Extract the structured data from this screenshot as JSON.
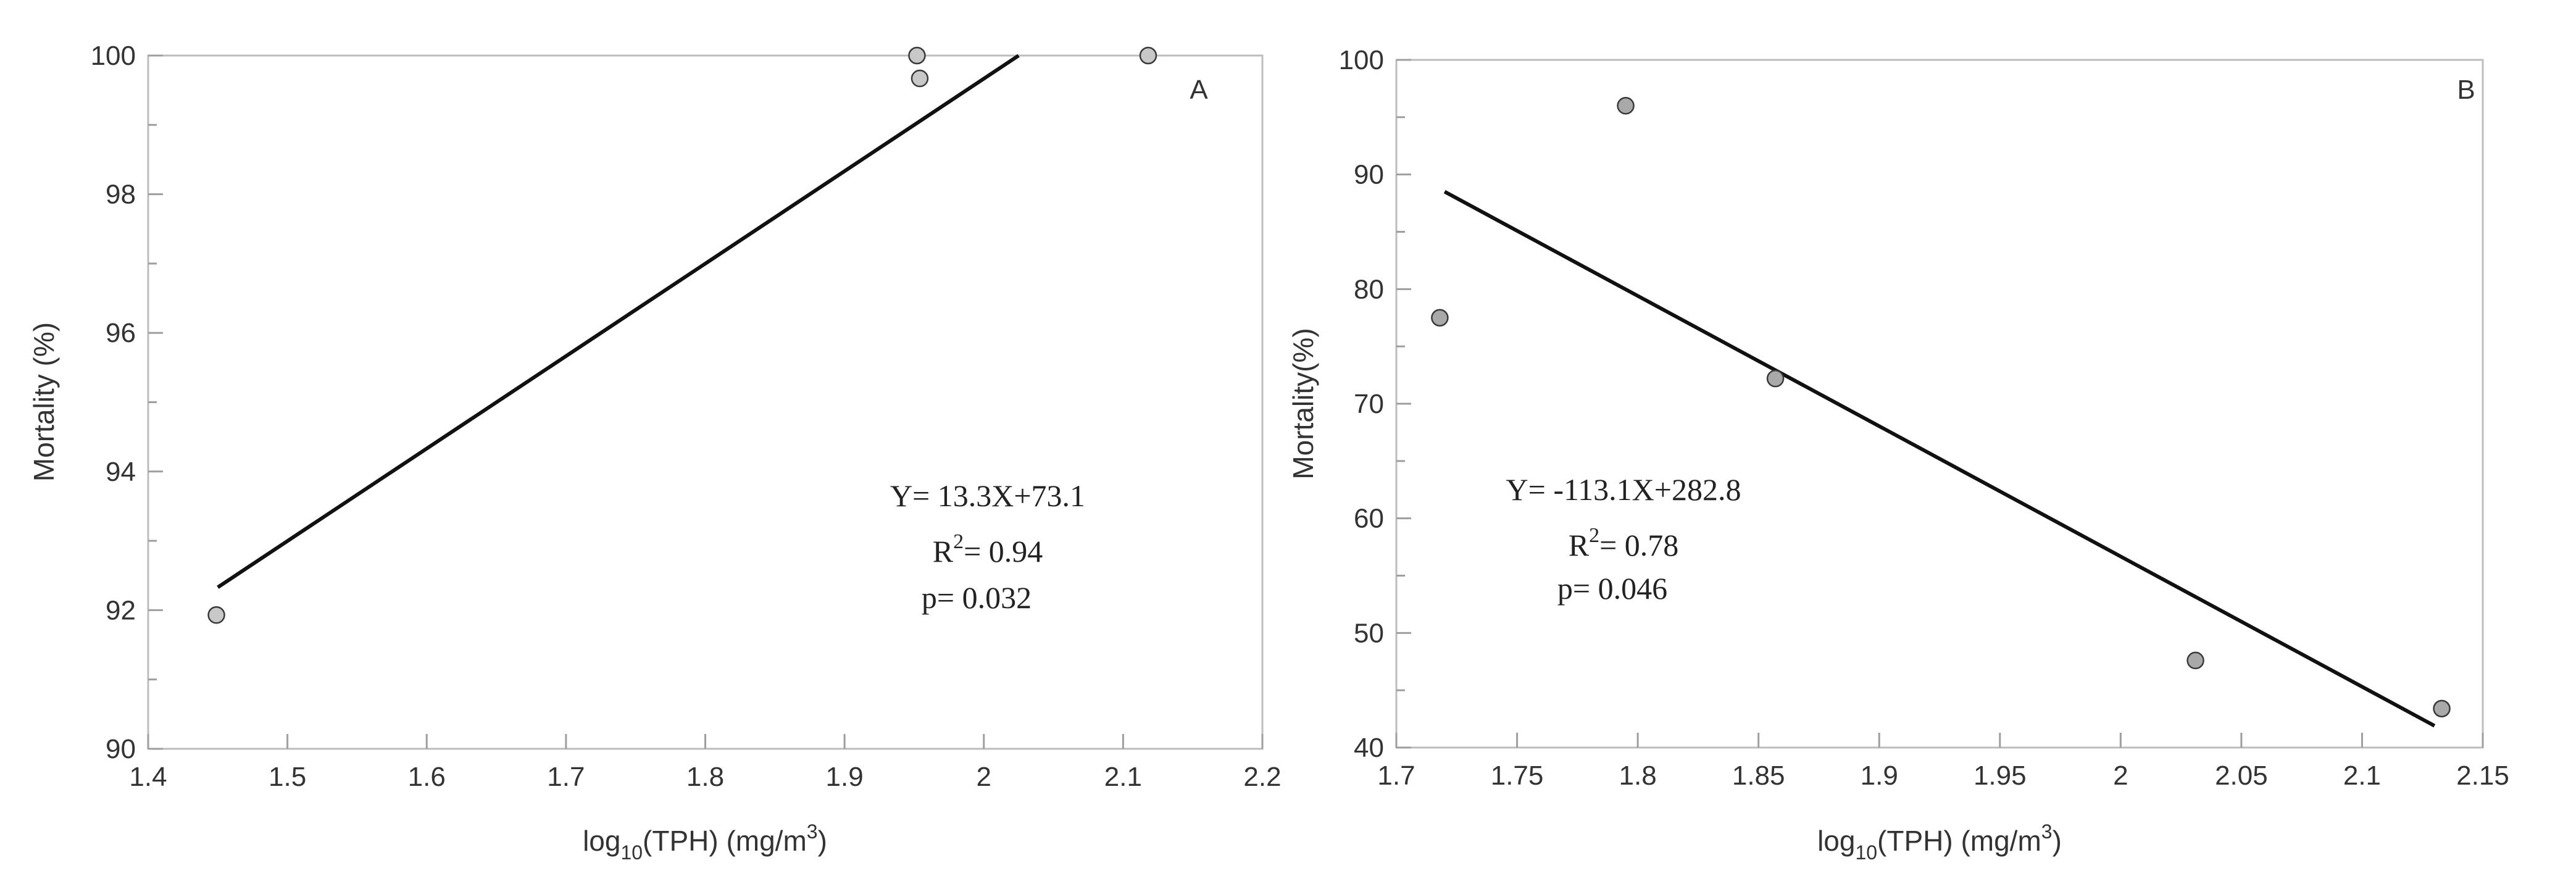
{
  "chart_data": [
    {
      "type": "scatter",
      "panel_label": "A",
      "xlabel": {
        "base": "log",
        "sub": "10",
        "mid": "(TPH) (mg/m",
        "sup": "3",
        "end": ")"
      },
      "ylabel": "Mortality (%)",
      "xlim": [
        1.4,
        2.2
      ],
      "ylim": [
        90,
        100
      ],
      "xticks": [
        1.4,
        1.5,
        1.6,
        1.7,
        1.8,
        1.9,
        2.0,
        2.1,
        2.2
      ],
      "xtick_labels": [
        "1.4",
        "1.5",
        "1.6",
        "1.7",
        "1.8",
        "1.9",
        "2",
        "2.1",
        "2.2"
      ],
      "yticks": [
        90,
        92,
        94,
        96,
        98,
        100
      ],
      "ytick_labels": [
        "90",
        "92",
        "94",
        "96",
        "98",
        "100"
      ],
      "points": [
        {
          "x": 1.449,
          "y": 91.93
        },
        {
          "x": 1.952,
          "y": 100.0
        },
        {
          "x": 1.954,
          "y": 99.67
        },
        {
          "x": 2.118,
          "y": 100.0
        }
      ],
      "fit_line": {
        "x": [
          1.45,
          2.025
        ],
        "y": [
          92.33,
          100.0
        ]
      },
      "point_color": "#c8c8c8",
      "annotation": {
        "equation": "Y= 13.3X+73.1",
        "r2_prefix": "R",
        "r2_sup": "2",
        "r2_value": "= 0.94",
        "p_value": "p= 0.032"
      }
    },
    {
      "type": "scatter",
      "panel_label": "B",
      "xlabel": {
        "base": "log",
        "sub": "10",
        "mid": "(TPH) (mg/m",
        "sup": "3",
        "end": ")"
      },
      "ylabel": "Mortality(%)",
      "xlim": [
        1.7,
        2.15
      ],
      "ylim": [
        40,
        100
      ],
      "xticks": [
        1.7,
        1.75,
        1.8,
        1.85,
        1.9,
        1.95,
        2.0,
        2.05,
        2.1,
        2.15
      ],
      "xtick_labels": [
        "1.7",
        "1.75",
        "1.8",
        "1.85",
        "1.9",
        "1.95",
        "2",
        "2.05",
        "2.1",
        "2.15"
      ],
      "yticks": [
        40,
        50,
        60,
        70,
        80,
        90,
        100
      ],
      "ytick_labels": [
        "40",
        "50",
        "60",
        "70",
        "80",
        "90",
        "100"
      ],
      "points": [
        {
          "x": 1.718,
          "y": 77.5
        },
        {
          "x": 1.795,
          "y": 96.0
        },
        {
          "x": 1.857,
          "y": 72.2
        },
        {
          "x": 2.031,
          "y": 47.6
        },
        {
          "x": 2.133,
          "y": 43.4
        }
      ],
      "fit_line": {
        "x": [
          1.72,
          2.13
        ],
        "y": [
          88.5,
          41.9
        ]
      },
      "point_color": "#a9a9a9",
      "annotation": {
        "equation": "Y= -113.1X+282.8",
        "r2_prefix": "R",
        "r2_sup": "2",
        "r2_value": "= 0.78",
        "p_value": "p= 0.046"
      }
    }
  ]
}
